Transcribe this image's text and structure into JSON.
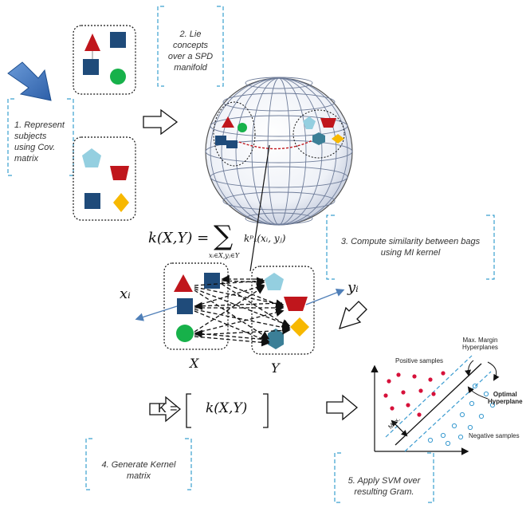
{
  "notes": {
    "step1": [
      "1. Represent",
      "subjects",
      "using Cov.",
      "matrix"
    ],
    "step2": [
      "2. Lie",
      "concepts",
      "over a SPD",
      "manifold"
    ],
    "step3": [
      "3. Compute similarity between bags",
      "using MI kernel"
    ],
    "step4": [
      "4. Generate Kernel",
      "matrix"
    ],
    "step5": [
      "5. Apply SVM over",
      "resulting Gram."
    ]
  },
  "math": {
    "kernel_lhs": "k(X,Y) =",
    "kernel_sum": "∑",
    "kernel_sum_sub": "xᵢ∈X,yⱼ∈Y",
    "kernel_term": "kᵖₓ(xᵢ, yⱼ)",
    "xi": "xᵢ",
    "yi": "yᵢ",
    "set_x": "X",
    "set_y": "Y",
    "gram_lhs": "K =",
    "gram_entry": "k(X,Y)"
  },
  "svm": {
    "positive": "Positive samples",
    "negative": "Negative samples",
    "max_margin": [
      "Max. Margin",
      "Hyperplanes"
    ],
    "optimal": [
      "Optimal",
      "Hyperplane"
    ],
    "max_label": "Max."
  },
  "colors": {
    "red": "#c0161c",
    "navy": "#1f4b7a",
    "green": "#17b14a",
    "cyan": "#94cfe0",
    "yellow": "#f7b800",
    "teal": "#3b7f97",
    "dashed_blue": "#3aa0cf",
    "arrow_blue": "#2f6db1",
    "svm_red": "#d6113a",
    "svm_blue": "#3a9bd0"
  }
}
